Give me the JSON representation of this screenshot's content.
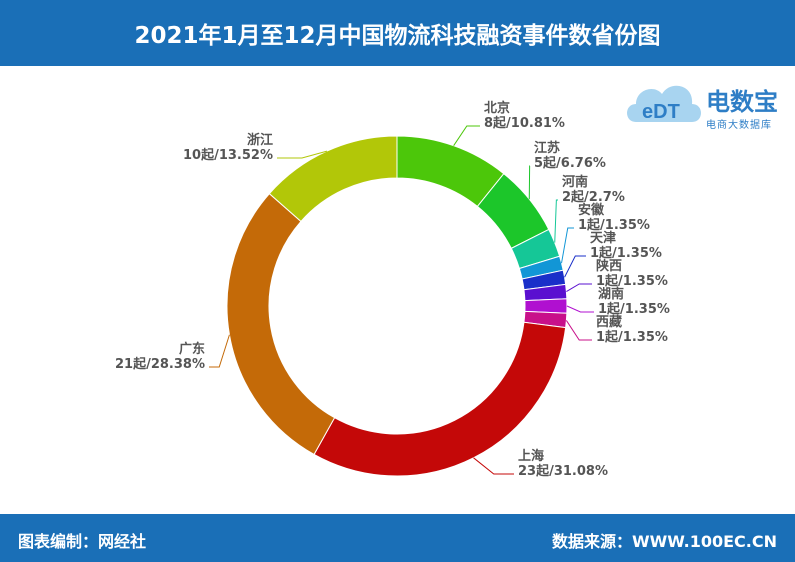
{
  "header": {
    "title": "2021年1月至12月中国物流科技融资事件数省份图"
  },
  "footer": {
    "left": "图表编制：网经社",
    "right": "数据来源：WWW.100EC.CN"
  },
  "logo": {
    "mark": "eDT",
    "brand": "电数宝",
    "sub": "电商大数据库"
  },
  "chart_data": {
    "type": "pie",
    "donut": true,
    "slices": [
      {
        "name": "北京",
        "label": "8起/10.81%",
        "value": 8,
        "percent": 10.81,
        "color": "#4cc70a"
      },
      {
        "name": "江苏",
        "label": "5起/6.76%",
        "value": 5,
        "percent": 6.76,
        "color": "#1cc62a"
      },
      {
        "name": "河南",
        "label": "2起/2.7%",
        "value": 2,
        "percent": 2.7,
        "color": "#15c797"
      },
      {
        "name": "安徽",
        "label": "1起/1.35%",
        "value": 1,
        "percent": 1.35,
        "color": "#1296d6"
      },
      {
        "name": "天津",
        "label": "1起/1.35%",
        "value": 1,
        "percent": 1.35,
        "color": "#1a2fc9"
      },
      {
        "name": "陕西",
        "label": "1起/1.35%",
        "value": 1,
        "percent": 1.35,
        "color": "#5a10d0"
      },
      {
        "name": "湖南",
        "label": "1起/1.35%",
        "value": 1,
        "percent": 1.35,
        "color": "#b010d0"
      },
      {
        "name": "西藏",
        "label": "1起/1.35%",
        "value": 1,
        "percent": 1.35,
        "color": "#c8108a"
      },
      {
        "name": "上海",
        "label": "23起/31.08%",
        "value": 23,
        "percent": 31.08,
        "color": "#c40808"
      },
      {
        "name": "广东",
        "label": "21起/28.38%",
        "value": 21,
        "percent": 28.38,
        "color": "#c46a08"
      },
      {
        "name": "浙江",
        "label": "10起/13.52%",
        "value": 10,
        "percent": 13.52,
        "color": "#b2c708"
      }
    ]
  }
}
